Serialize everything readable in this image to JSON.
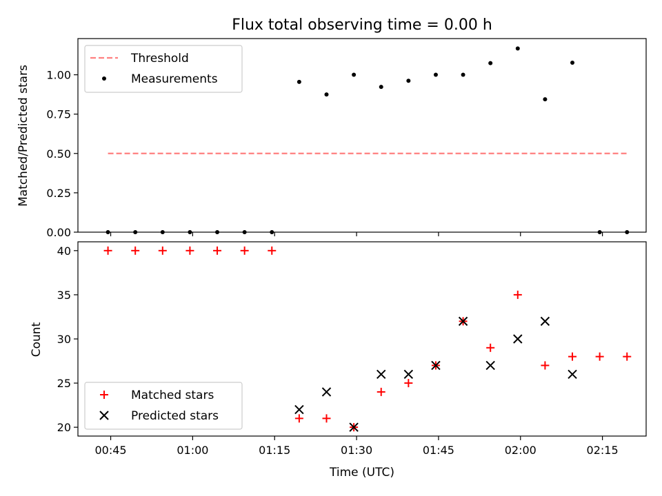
{
  "chart_data": [
    {
      "type": "scatter",
      "title": "Flux total observing time = 0.00 h",
      "ylabel": "Matched/Predicted stars",
      "xlabel": "",
      "xlim": [
        "00:39",
        "02:23"
      ],
      "ylim": [
        0,
        1.23
      ],
      "yticks": [
        0.0,
        0.25,
        0.5,
        0.75,
        1.0
      ],
      "ytick_labels": [
        "0.00",
        "0.25",
        "0.50",
        "0.75",
        "1.00"
      ],
      "xticks": [
        "00:45",
        "01:00",
        "01:15",
        "01:30",
        "01:45",
        "02:00",
        "02:15"
      ],
      "show_xtick_labels": false,
      "grid": false,
      "legend": "top-left",
      "series": [
        {
          "name": "Threshold",
          "kind": "line",
          "style": "dashed",
          "color": "#ff7f7f",
          "points": [
            [
              "00:44:30",
              0.5
            ],
            [
              "02:19:30",
              0.5
            ]
          ]
        },
        {
          "name": "Measurements",
          "kind": "scatter",
          "marker": "dot",
          "color": "#000000",
          "points": [
            [
              "00:44:30",
              0.0
            ],
            [
              "00:49:30",
              0.0
            ],
            [
              "00:54:30",
              0.0
            ],
            [
              "00:59:30",
              0.0
            ],
            [
              "01:04:30",
              0.0
            ],
            [
              "01:09:30",
              0.0
            ],
            [
              "01:14:30",
              0.0
            ],
            [
              "01:19:30",
              0.955
            ],
            [
              "01:24:30",
              0.875
            ],
            [
              "01:29:30",
              1.0
            ],
            [
              "01:34:30",
              0.923
            ],
            [
              "01:39:30",
              0.962
            ],
            [
              "01:44:30",
              1.0
            ],
            [
              "01:49:30",
              1.0
            ],
            [
              "01:54:30",
              1.074
            ],
            [
              "01:59:30",
              1.167
            ],
            [
              "02:04:30",
              0.844
            ],
            [
              "02:09:30",
              1.077
            ],
            [
              "02:14:30",
              0.0
            ],
            [
              "02:19:30",
              0.0
            ]
          ]
        }
      ]
    },
    {
      "type": "scatter",
      "title": "",
      "ylabel": "Count",
      "xlabel": "Time (UTC)",
      "xlim": [
        "00:39",
        "02:23"
      ],
      "ylim": [
        19,
        41
      ],
      "yticks": [
        20,
        25,
        30,
        35,
        40
      ],
      "ytick_labels": [
        "20",
        "25",
        "30",
        "35",
        "40"
      ],
      "xticks": [
        "00:45",
        "01:00",
        "01:15",
        "01:30",
        "01:45",
        "02:00",
        "02:15"
      ],
      "show_xtick_labels": true,
      "grid": false,
      "legend": "bottom-left",
      "series": [
        {
          "name": "Matched stars",
          "kind": "scatter",
          "marker": "plus",
          "color": "#ff0000",
          "points": [
            [
              "00:44:30",
              40
            ],
            [
              "00:49:30",
              40
            ],
            [
              "00:54:30",
              40
            ],
            [
              "00:59:30",
              40
            ],
            [
              "01:04:30",
              40
            ],
            [
              "01:09:30",
              40
            ],
            [
              "01:14:30",
              40
            ],
            [
              "01:19:30",
              21
            ],
            [
              "01:24:30",
              21
            ],
            [
              "01:29:30",
              20
            ],
            [
              "01:34:30",
              24
            ],
            [
              "01:39:30",
              25
            ],
            [
              "01:44:30",
              27
            ],
            [
              "01:49:30",
              32
            ],
            [
              "01:54:30",
              29
            ],
            [
              "01:59:30",
              35
            ],
            [
              "02:04:30",
              27
            ],
            [
              "02:09:30",
              28
            ],
            [
              "02:14:30",
              28
            ],
            [
              "02:19:30",
              28
            ]
          ]
        },
        {
          "name": "Predicted stars",
          "kind": "scatter",
          "marker": "x",
          "color": "#000000",
          "points": [
            [
              "01:19:30",
              22
            ],
            [
              "01:24:30",
              24
            ],
            [
              "01:29:30",
              20
            ],
            [
              "01:34:30",
              26
            ],
            [
              "01:39:30",
              26
            ],
            [
              "01:44:30",
              27
            ],
            [
              "01:49:30",
              32
            ],
            [
              "01:54:30",
              27
            ],
            [
              "01:59:30",
              30
            ],
            [
              "02:04:30",
              32
            ],
            [
              "02:09:30",
              26
            ]
          ]
        }
      ]
    }
  ]
}
